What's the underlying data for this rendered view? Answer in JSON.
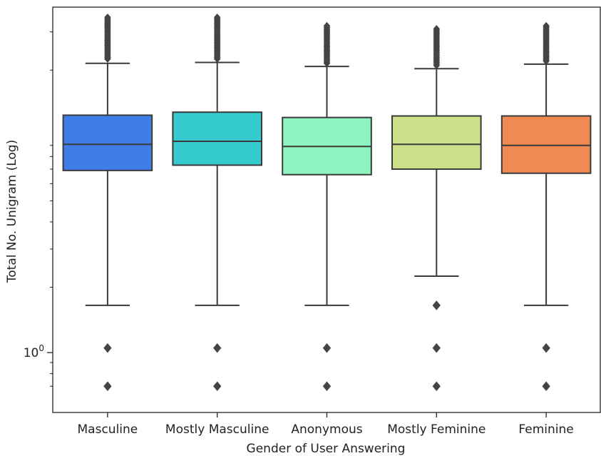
{
  "chart_data": {
    "type": "box",
    "title": "",
    "xlabel": "Gender of User Answering",
    "ylabel": "Total No. Unigram (Log)",
    "y_scale": "log",
    "y_ticks": [
      {
        "value": 1,
        "label_base": "10",
        "label_exp": "0"
      }
    ],
    "y_minor_ticks": [
      0.7,
      0.8,
      0.9,
      2,
      3,
      4,
      5,
      6,
      7,
      8,
      9,
      20,
      30
    ],
    "ylim": [
      0.53,
      39
    ],
    "grid": false,
    "legend": "none",
    "categories": [
      "Masculine",
      "Mostly Masculine",
      "Anonymous",
      "Mostly Feminine",
      "Feminine"
    ],
    "boxes": [
      {
        "category": "Masculine",
        "color": "#3f7ee8",
        "whisker_low": 1.65,
        "q1": 6.9,
        "median": 9.1,
        "q3": 12.4,
        "whisker_high": 21.5,
        "outliers_low": [
          0.7,
          1.05
        ],
        "outliers_high_range": [
          22.5,
          35
        ]
      },
      {
        "category": "Mostly Masculine",
        "color": "#36cbcf",
        "whisker_low": 1.65,
        "q1": 7.3,
        "median": 9.4,
        "q3": 12.8,
        "whisker_high": 21.7,
        "outliers_low": [
          0.7,
          1.05
        ],
        "outliers_high_range": [
          22.5,
          35
        ]
      },
      {
        "category": "Anonymous",
        "color": "#8ef5c0",
        "whisker_low": 1.65,
        "q1": 6.6,
        "median": 8.9,
        "q3": 12.1,
        "whisker_high": 20.8,
        "outliers_low": [
          0.7,
          1.05
        ],
        "outliers_high_range": [
          21.5,
          32
        ]
      },
      {
        "category": "Mostly Feminine",
        "color": "#cde08a",
        "whisker_low": 2.25,
        "q1": 7.0,
        "median": 9.1,
        "q3": 12.3,
        "whisker_high": 20.3,
        "outliers_low": [
          0.7,
          1.05,
          1.65
        ],
        "outliers_high_range": [
          21.0,
          31
        ]
      },
      {
        "category": "Feminine",
        "color": "#f08a52",
        "whisker_low": 1.65,
        "q1": 6.7,
        "median": 9.0,
        "q3": 12.3,
        "whisker_high": 21.3,
        "outliers_low": [
          0.7,
          1.05
        ],
        "outliers_high_range": [
          22.0,
          32
        ]
      }
    ]
  }
}
